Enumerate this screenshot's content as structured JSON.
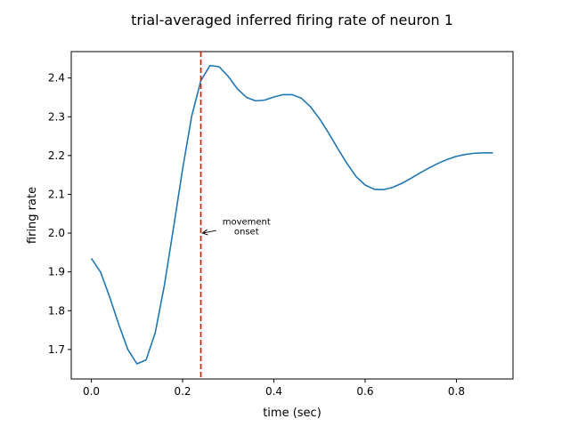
{
  "chart_data": {
    "type": "line",
    "title": "trial-averaged inferred firing rate of neuron 1",
    "xlabel": "time (sec)",
    "ylabel": "firing rate",
    "xlim": [
      -0.044,
      0.924
    ],
    "ylim": [
      1.624,
      2.468
    ],
    "xticks": [
      0.0,
      0.2,
      0.4,
      0.6,
      0.8
    ],
    "xtick_labels": [
      "0.0",
      "0.2",
      "0.4",
      "0.6",
      "0.8"
    ],
    "yticks": [
      1.7,
      1.8,
      1.9,
      2.0,
      2.1,
      2.2,
      2.3,
      2.4
    ],
    "ytick_labels": [
      "1.7",
      "1.8",
      "1.9",
      "2.0",
      "2.1",
      "2.2",
      "2.3",
      "2.4"
    ],
    "grid": false,
    "series": [
      {
        "color": "#1f77b4",
        "x": [
          0.0,
          0.02,
          0.04,
          0.06,
          0.08,
          0.1,
          0.12,
          0.14,
          0.16,
          0.18,
          0.2,
          0.22,
          0.24,
          0.26,
          0.28,
          0.3,
          0.32,
          0.34,
          0.36,
          0.38,
          0.4,
          0.42,
          0.44,
          0.46,
          0.48,
          0.5,
          0.52,
          0.54,
          0.56,
          0.58,
          0.6,
          0.62,
          0.64,
          0.66,
          0.68,
          0.7,
          0.72,
          0.74,
          0.76,
          0.78,
          0.8,
          0.82,
          0.84,
          0.86,
          0.88
        ],
        "y": [
          1.935,
          1.9,
          1.836,
          1.765,
          1.7,
          1.663,
          1.673,
          1.743,
          1.865,
          2.013,
          2.165,
          2.302,
          2.393,
          2.432,
          2.429,
          2.404,
          2.372,
          2.35,
          2.341,
          2.343,
          2.351,
          2.357,
          2.357,
          2.348,
          2.326,
          2.295,
          2.258,
          2.218,
          2.18,
          2.146,
          2.124,
          2.113,
          2.112,
          2.118,
          2.128,
          2.141,
          2.155,
          2.168,
          2.18,
          2.19,
          2.198,
          2.203,
          2.206,
          2.207,
          2.207
        ]
      }
    ],
    "marker_line": {
      "x": 0.24,
      "color": "#ff0000",
      "style": "dashed"
    },
    "annotation": {
      "text_line1": "movement",
      "text_line2": "onset",
      "point": [
        0.24,
        2.0
      ],
      "text_pos": [
        0.34,
        2.02
      ]
    }
  }
}
